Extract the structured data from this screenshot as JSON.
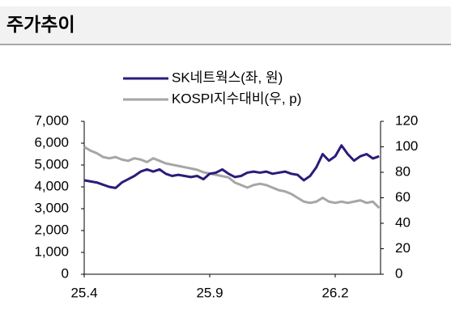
{
  "chart_data": {
    "type": "line",
    "title": "주가추이",
    "categories": [
      "25.4",
      null,
      null,
      null,
      null,
      null,
      null,
      null,
      null,
      null,
      null,
      null,
      null,
      null,
      null,
      null,
      null,
      null,
      null,
      null,
      "25.9",
      null,
      null,
      null,
      null,
      null,
      null,
      null,
      null,
      null,
      null,
      null,
      null,
      null,
      null,
      null,
      null,
      null,
      null,
      null,
      "26.2",
      null,
      null,
      null,
      null,
      null,
      null,
      null
    ],
    "series": [
      {
        "name": "SK네트웍스(좌, 원)",
        "color": "#2e1a7a",
        "axis": "y",
        "values": [
          4300,
          4250,
          4200,
          4100,
          4000,
          3950,
          4200,
          4350,
          4500,
          4700,
          4800,
          4700,
          4800,
          4600,
          4500,
          4550,
          4500,
          4450,
          4500,
          4350,
          4600,
          4650,
          4800,
          4600,
          4450,
          4500,
          4650,
          4700,
          4650,
          4700,
          4600,
          4650,
          4700,
          4600,
          4550,
          4300,
          4500,
          4900,
          5500,
          5200,
          5400,
          5900,
          5500,
          5200,
          5400,
          5500,
          5300,
          5400
        ]
      },
      {
        "name": "KOSPI지수대비(우, p)",
        "color": "#a6a6a6",
        "axis": "y2",
        "values": [
          100,
          97,
          95,
          92,
          91,
          92,
          90,
          89,
          91,
          90,
          88,
          91,
          89,
          87,
          86,
          85,
          84,
          83,
          82,
          80,
          79,
          78,
          77,
          76,
          72,
          70,
          68,
          70,
          71,
          70,
          68,
          66,
          65,
          63,
          60,
          57,
          56,
          57,
          60,
          57,
          56,
          57,
          56,
          57,
          58,
          56,
          57,
          52
        ]
      }
    ],
    "ylim": [
      0,
      7000
    ],
    "yticks": [
      0,
      {
        "value": 1000,
        "label": "1,000"
      },
      {
        "value": 2000,
        "label": "2,000"
      },
      {
        "value": 3000,
        "label": "3,000"
      },
      {
        "value": 4000,
        "label": "4,000"
      },
      {
        "value": 5000,
        "label": "5,000"
      },
      {
        "value": 6000,
        "label": "6,000"
      },
      {
        "value": 7000,
        "label": "7,000"
      }
    ],
    "y2lim": [
      0,
      120
    ],
    "y2ticks": [
      0,
      20,
      40,
      60,
      80,
      100,
      120
    ],
    "legend": "top"
  }
}
